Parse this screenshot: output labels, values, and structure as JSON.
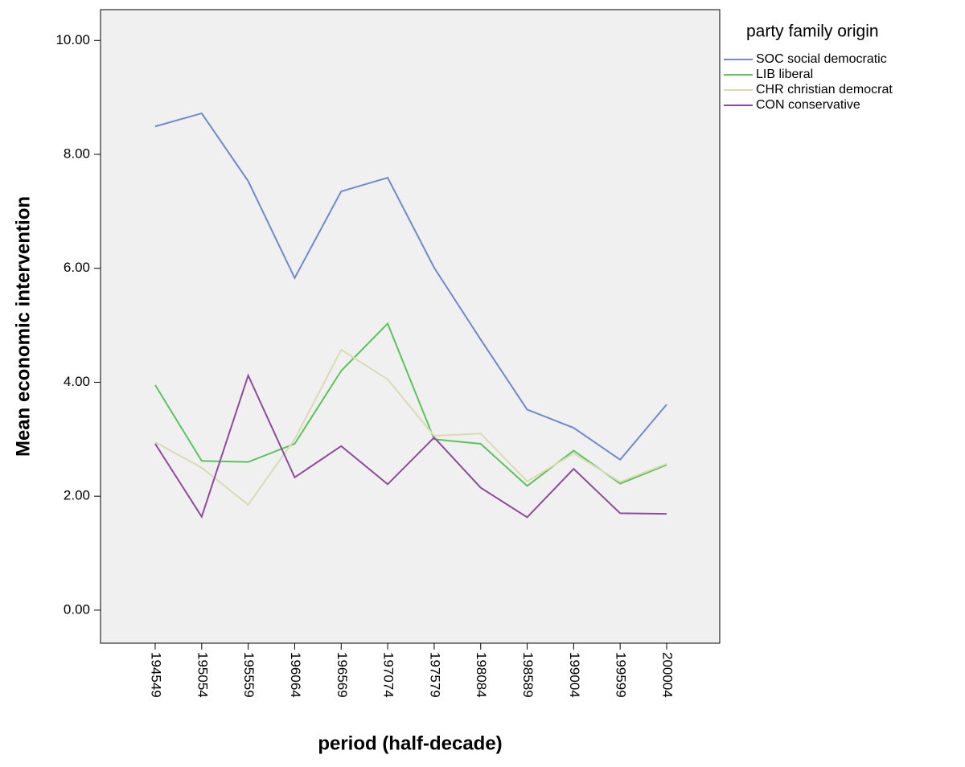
{
  "chart_data": {
    "type": "line",
    "x_label": "period (half-decade)",
    "y_label": "Mean economic intervention",
    "legend_title": "party family origin",
    "legend_position": "right",
    "categories": [
      "194549",
      "195054",
      "195559",
      "196064",
      "196569",
      "197074",
      "197579",
      "198084",
      "198589",
      "199004",
      "199599",
      "200004"
    ],
    "ylim": [
      -0.58,
      10.54
    ],
    "yticks": [
      {
        "value": 0,
        "label": "0.00"
      },
      {
        "value": 2,
        "label": "2.00"
      },
      {
        "value": 4,
        "label": "4.00"
      },
      {
        "value": 6,
        "label": "6.00"
      },
      {
        "value": 8,
        "label": "8.00"
      },
      {
        "value": 10,
        "label": "10.00"
      }
    ],
    "series": [
      {
        "name": "SOC social democratic",
        "color": "#7089c9",
        "values": [
          8.49,
          8.72,
          7.53,
          5.83,
          7.35,
          7.59,
          6.01,
          4.75,
          3.52,
          3.2,
          2.64,
          3.61
        ]
      },
      {
        "name": "LIB liberal",
        "color": "#5cc35c",
        "values": [
          3.95,
          2.62,
          2.6,
          2.92,
          4.2,
          5.03,
          3.0,
          2.92,
          2.18,
          2.8,
          2.22,
          2.55
        ]
      },
      {
        "name": "CHR christian democrat",
        "color": "#dcdab4",
        "values": [
          2.95,
          2.5,
          1.85,
          3.0,
          4.57,
          4.05,
          3.06,
          3.1,
          2.26,
          2.75,
          2.25,
          2.57
        ]
      },
      {
        "name": "CON conservative",
        "color": "#8e4a9c",
        "values": [
          2.92,
          1.64,
          4.12,
          2.33,
          2.88,
          2.21,
          3.03,
          2.15,
          1.63,
          2.48,
          1.7,
          1.69
        ]
      }
    ]
  }
}
